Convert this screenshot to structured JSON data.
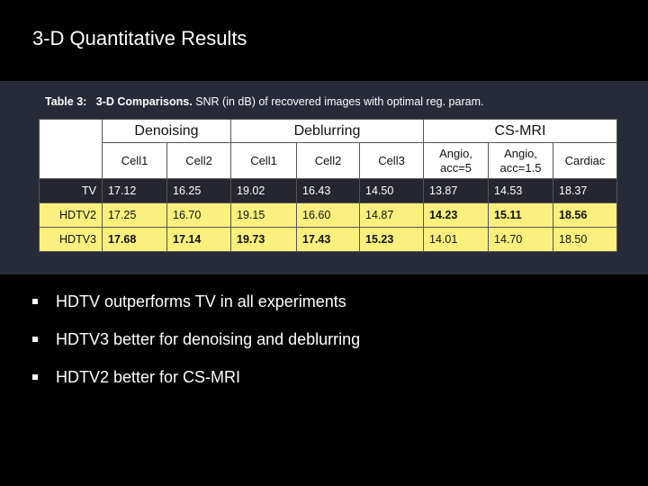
{
  "slide": {
    "title": "3-D Quantitative Results"
  },
  "caption": {
    "label": "Table 3:",
    "heading": "3-D Comparisons.",
    "text": "SNR (in dB) of recovered images with optimal reg. param."
  },
  "table": {
    "groups": [
      "Denoising",
      "Deblurring",
      "CS-MRI"
    ],
    "columns": [
      "Cell1",
      "Cell2",
      "Cell1",
      "Cell2",
      "Cell3",
      "Angio, acc=5",
      "Angio, acc=1.5",
      "Cardiac"
    ],
    "rows": [
      {
        "label": "TV",
        "values": [
          "17.12",
          "16.25",
          "19.02",
          "16.43",
          "14.50",
          "13.87",
          "14.53",
          "18.37"
        ]
      },
      {
        "label": "HDTV2",
        "values": [
          "17.25",
          "16.70",
          "19.15",
          "16.60",
          "14.87",
          "14.23",
          "15.11",
          "18.56"
        ]
      },
      {
        "label": "HDTV3",
        "values": [
          "17.68",
          "17.14",
          "19.73",
          "17.43",
          "15.23",
          "14.01",
          "14.70",
          "18.50"
        ]
      }
    ]
  },
  "bullets": [
    "HDTV outperforms TV in all experiments",
    "HDTV3 better for denoising and deblurring",
    "HDTV2 better for CS-MRI"
  ]
}
